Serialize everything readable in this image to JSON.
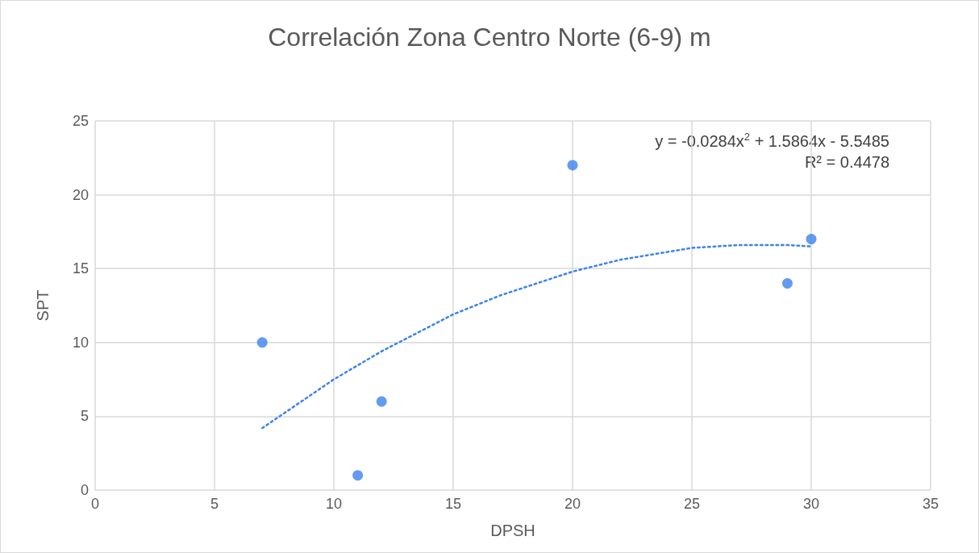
{
  "chart_data": {
    "type": "scatter",
    "title": "Correlación Zona Centro Norte (6-9) m",
    "xlabel": "DPSH",
    "ylabel": "SPT",
    "xlim": [
      0,
      35
    ],
    "ylim": [
      0,
      25
    ],
    "xticks": [
      0,
      5,
      10,
      15,
      20,
      25,
      30,
      35
    ],
    "yticks": [
      0,
      5,
      10,
      15,
      20,
      25
    ],
    "grid": true,
    "marker": "circle",
    "annotations": [
      "y = -0.0284x$^{2}$ + 1.5864x - 5.5485",
      "R² = 0.4478"
    ],
    "series": [
      {
        "type": "scatter",
        "color": "#3c82f0",
        "x": [
          7,
          11,
          12,
          20,
          29,
          30
        ],
        "values": [
          10,
          1,
          6,
          22,
          14,
          17
        ]
      },
      {
        "type": "line",
        "color": "#3c82f0",
        "line_style": "dotted",
        "marker": "none",
        "x": [
          7,
          10,
          12,
          15,
          17,
          20,
          22,
          25,
          27,
          29,
          30
        ],
        "values": [
          4.2,
          7.5,
          9.4,
          11.9,
          13.2,
          14.8,
          15.6,
          16.4,
          16.6,
          16.6,
          16.5
        ]
      }
    ]
  }
}
